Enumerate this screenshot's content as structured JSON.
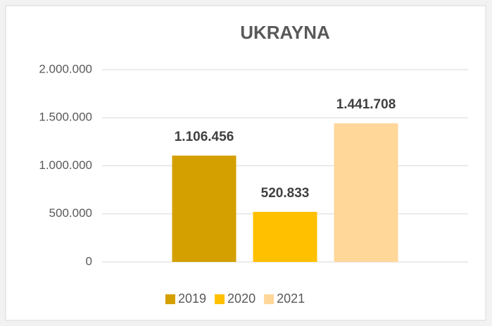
{
  "chart_data": {
    "type": "bar",
    "title": "UKRAYNA",
    "categories": [
      null
    ],
    "series": [
      {
        "name": "2019",
        "color": "#d4a000",
        "values": [
          1106456
        ],
        "value_labels": [
          "1.106.456"
        ]
      },
      {
        "name": "2020",
        "color": "#ffc000",
        "values": [
          520833
        ],
        "value_labels": [
          "520.833"
        ]
      },
      {
        "name": "2021",
        "color": "#ffd799",
        "values": [
          1441708
        ],
        "value_labels": [
          "1.441.708"
        ]
      }
    ],
    "ylim": [
      0,
      2000000
    ],
    "yticks": [
      0,
      {
        "value": 500000,
        "label": "500.000"
      },
      {
        "value": 1000000,
        "label": "1.000.000"
      },
      {
        "value": 1500000,
        "label": "1.500.000"
      },
      {
        "value": 2000000,
        "label": "2.000.000"
      }
    ],
    "grid": true,
    "legend": "bottom"
  }
}
